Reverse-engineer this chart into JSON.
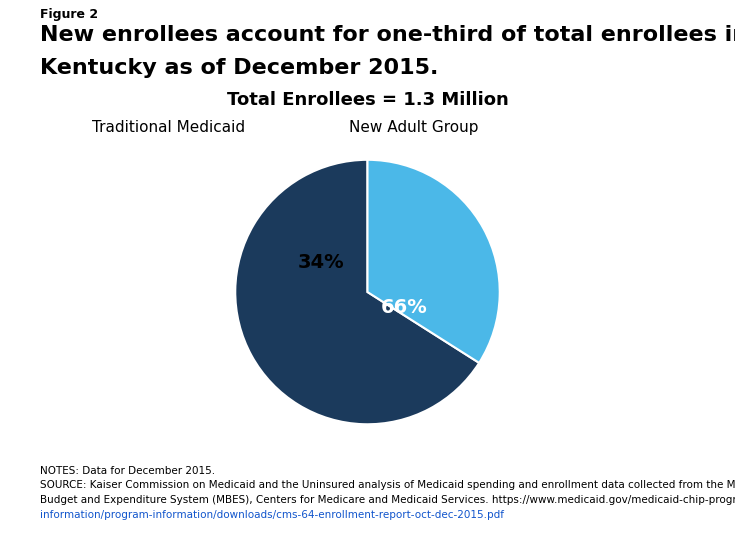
{
  "figure_label": "Figure 2",
  "title_line1": "New enrollees account for one-third of total enrollees in",
  "title_line2": "Kentucky as of December 2015.",
  "subtitle": "Total Enrollees = 1.3 Million",
  "slices": [
    66,
    34
  ],
  "colors": [
    "#1B3A5C",
    "#4BB8E8"
  ],
  "labels": [
    "Traditional Medicaid",
    "New Adult Group"
  ],
  "pct_labels": [
    "66%",
    "34%"
  ],
  "pct_colors": [
    "white",
    "black"
  ],
  "notes_line1": "NOTES: Data for December 2015.",
  "notes_line2": "SOURCE: Kaiser Commission on Medicaid and the Uninsured analysis of Medicaid spending and enrollment data collected from the Medicaid",
  "notes_line3": "Budget and Expenditure System (MBES), Centers for Medicare and Medicaid Services. https://www.medicaid.gov/medicaid-chip-program-",
  "notes_line4": "information/program-information/downloads/cms-64-enrollment-report-oct-dec-2015.pdf",
  "background_color": "#FFFFFF",
  "startangle": 90,
  "legend_fontsize": 11,
  "subtitle_fontsize": 13,
  "notes_fontsize": 7.5,
  "pct_fontsize": 14,
  "fig_label_fontsize": 9,
  "title_fontsize": 16
}
